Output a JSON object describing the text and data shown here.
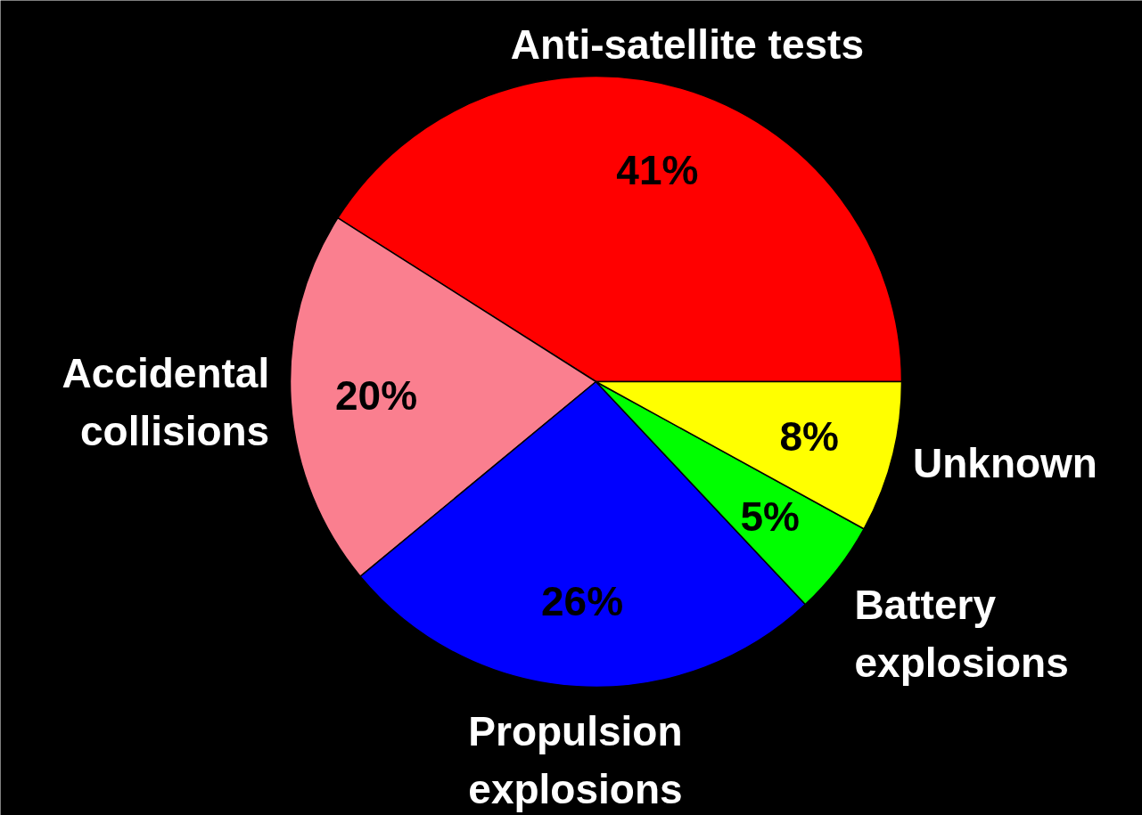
{
  "chart_data": {
    "type": "pie",
    "categories": [
      "Anti-satellite tests",
      "Accidental\ncollisions",
      "Propulsion\nexplosions",
      "Battery\nexplosions",
      "Unknown"
    ],
    "values": [
      41,
      20,
      26,
      5,
      8
    ],
    "value_labels": [
      "41%",
      "20%",
      "26%",
      "5%",
      "8%"
    ],
    "colors": [
      "#ff0000",
      "#fa7f8f",
      "#0000ff",
      "#00ff00",
      "#ffff00"
    ]
  }
}
